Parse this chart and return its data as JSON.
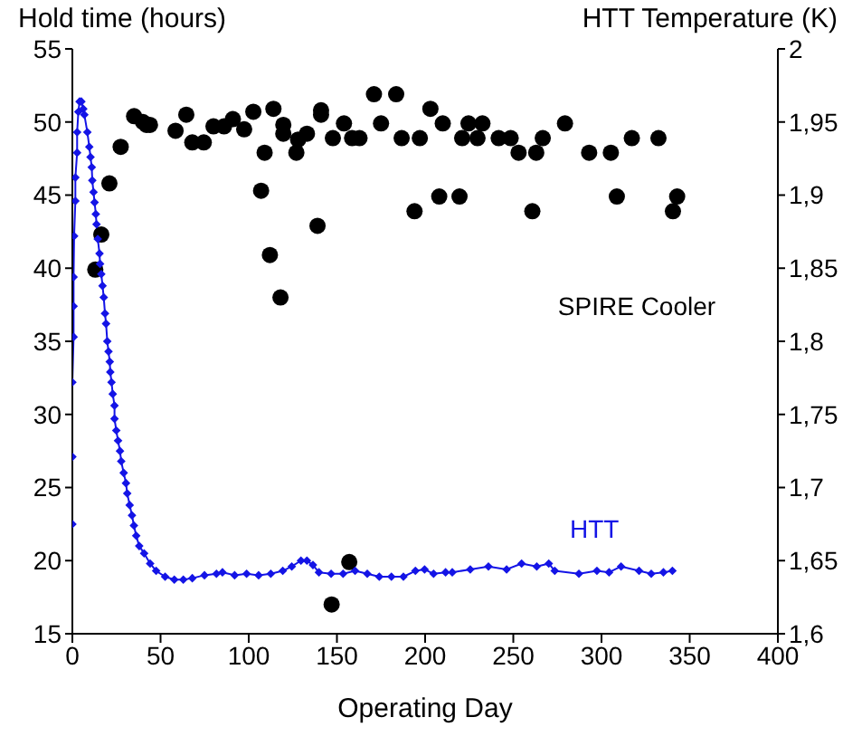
{
  "chart_data": {
    "type": "scatter",
    "xlabel": "Operating Day",
    "ylabel": "Hold time (hours)",
    "y2label": "HTT Temperature (K)",
    "xlim": [
      0,
      400
    ],
    "xticks": [
      0,
      50,
      100,
      150,
      200,
      250,
      300,
      350,
      400
    ],
    "ylim": [
      15,
      55
    ],
    "yticks": [
      15,
      20,
      25,
      30,
      35,
      40,
      45,
      50,
      55
    ],
    "y2lim": [
      1.6,
      2
    ],
    "y2ticks": [
      {
        "value": 1.6,
        "label": "1,6"
      },
      {
        "value": 1.65,
        "label": "1,65"
      },
      {
        "value": 1.7,
        "label": "1,7"
      },
      {
        "value": 1.75,
        "label": "1,75"
      },
      {
        "value": 1.8,
        "label": "1,8"
      },
      {
        "value": 1.85,
        "label": "1,85"
      },
      {
        "value": 1.9,
        "label": "1,9"
      },
      {
        "value": 1.95,
        "label": "1,95"
      },
      {
        "value": 2,
        "label": "2"
      }
    ],
    "grid": false,
    "legend": false,
    "series": [
      {
        "name": "SPIRE Cooler",
        "marker": "circle",
        "color": "#000000",
        "x": [
          13,
          16.4,
          21,
          27.4,
          35,
          40,
          42,
          44,
          58.5,
          64.6,
          68,
          74.5,
          80,
          86,
          91,
          97.4,
          102.6,
          107,
          109,
          112,
          114,
          118,
          119.6,
          119.6,
          127,
          128,
          133,
          139,
          141,
          141,
          147.7,
          154,
          157,
          147,
          158.6,
          162.8,
          171,
          175,
          183.6,
          186.7,
          194,
          197,
          203,
          208,
          210,
          219.5,
          221,
          224.6,
          229.7,
          232.5,
          241.7,
          248.5,
          253,
          260.8,
          263,
          266.7,
          279.3,
          293,
          305.3,
          308.7,
          317.2,
          332.3,
          340.5,
          342.9
        ],
        "values": [
          39.9,
          42.3,
          45.8,
          48.3,
          50.4,
          50,
          49.8,
          49.8,
          49.4,
          50.5,
          48.6,
          48.6,
          49.7,
          49.7,
          50.2,
          49.5,
          50.7,
          45.3,
          47.9,
          40.9,
          50.9,
          38,
          49.8,
          49.2,
          47.9,
          48.8,
          49.2,
          42.9,
          50.8,
          50.5,
          48.9,
          49.9,
          19.9,
          17,
          48.9,
          48.9,
          51.9,
          49.9,
          51.9,
          48.9,
          43.9,
          48.9,
          50.9,
          44.9,
          49.9,
          44.9,
          48.9,
          49.9,
          48.9,
          49.9,
          48.9,
          48.9,
          47.9,
          43.9,
          47.9,
          48.9,
          49.9,
          47.9,
          47.9,
          44.9,
          48.9,
          48.9,
          43.9,
          44.9
        ]
      },
      {
        "name": "HTT",
        "type": "line",
        "axis": "y2",
        "marker": "diamond",
        "color": "#1414e6",
        "x": [
          0,
          0,
          0,
          0.7,
          0.7,
          0.7,
          1,
          1.7,
          1.7,
          2.7,
          2.7,
          3.4,
          4.1,
          5.1,
          6.2,
          6.8,
          8.5,
          9.6,
          10.3,
          11,
          11.3,
          12,
          12.6,
          13.3,
          13.7,
          14.4,
          15.4,
          15.7,
          16.4,
          17.1,
          17.8,
          18.5,
          19.1,
          19.8,
          20.5,
          21.2,
          21.5,
          22.2,
          22.9,
          23.9,
          23.9,
          24.9,
          25.9,
          27,
          27.7,
          29.1,
          30.4,
          31.1,
          32.5,
          33.8,
          34.9,
          36.2,
          37.9,
          40.7,
          44.1,
          47.5,
          52.6,
          57.8,
          62.9,
          68,
          74.9,
          81.7,
          85.1,
          92,
          98.8,
          105.6,
          112.5,
          119.3,
          124.4,
          129.6,
          133,
          136.4,
          139.8,
          146.7,
          153.5,
          160.3,
          167.2,
          174,
          180.9,
          187.7,
          194.5,
          199.7,
          204.8,
          211.6,
          215.4,
          225.6,
          235.9,
          246.2,
          254.7,
          263.3,
          270.1,
          273.5,
          287.2,
          297.4,
          304.3,
          311.1,
          321.3,
          328.2,
          335.1,
          340.2
        ],
        "values": [
          1.675,
          1.721,
          1.772,
          1.803,
          1.824,
          1.844,
          1.872,
          1.896,
          1.912,
          1.929,
          1.943,
          1.957,
          1.964,
          1.964,
          1.959,
          1.955,
          1.943,
          1.933,
          1.926,
          1.919,
          1.91,
          1.902,
          1.895,
          1.887,
          1.88,
          1.87,
          1.86,
          1.853,
          1.846,
          1.838,
          1.83,
          1.819,
          1.812,
          1.8,
          1.793,
          1.786,
          1.779,
          1.772,
          1.764,
          1.756,
          1.747,
          1.739,
          1.732,
          1.725,
          1.718,
          1.71,
          1.703,
          1.696,
          1.688,
          1.681,
          1.674,
          1.667,
          1.66,
          1.655,
          1.648,
          1.643,
          1.639,
          1.637,
          1.637,
          1.638,
          1.64,
          1.641,
          1.642,
          1.64,
          1.641,
          1.64,
          1.641,
          1.643,
          1.646,
          1.65,
          1.65,
          1.647,
          1.642,
          1.641,
          1.641,
          1.643,
          1.641,
          1.639,
          1.639,
          1.639,
          1.643,
          1.644,
          1.641,
          1.642,
          1.642,
          1.644,
          1.646,
          1.644,
          1.648,
          1.646,
          1.648,
          1.643,
          1.641,
          1.643,
          1.642,
          1.646,
          1.643,
          1.641,
          1.642,
          1.643
        ]
      }
    ]
  }
}
